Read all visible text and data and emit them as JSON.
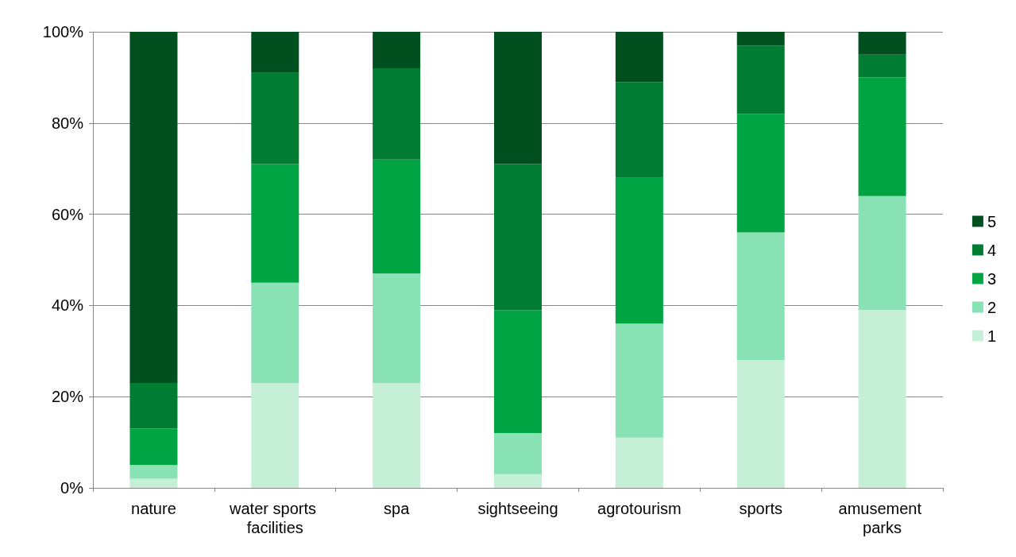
{
  "chart_data": {
    "type": "bar",
    "stacked": true,
    "categories": [
      "nature",
      "water sports facilities",
      "spa",
      "sightseeing",
      "agrotourism",
      "sports",
      "amusement parks"
    ],
    "series": [
      {
        "name": "1",
        "color": "#c6efd7",
        "values": [
          2,
          23,
          23,
          3,
          11,
          28,
          39
        ]
      },
      {
        "name": "2",
        "color": "#88e2b4",
        "values": [
          3,
          22,
          24,
          9,
          25,
          28,
          25
        ]
      },
      {
        "name": "3",
        "color": "#00a443",
        "values": [
          8,
          26,
          25,
          27,
          32,
          26,
          26
        ]
      },
      {
        "name": "4",
        "color": "#007d33",
        "values": [
          10,
          20,
          20,
          32,
          21,
          15,
          5
        ]
      },
      {
        "name": "5",
        "color": "#00501f",
        "values": [
          77,
          9,
          8,
          29,
          11,
          3,
          5
        ]
      }
    ],
    "ylim": [
      0,
      100
    ],
    "yticks": [
      {
        "value": 0,
        "label": "0%"
      },
      {
        "value": 20,
        "label": "20%"
      },
      {
        "value": 40,
        "label": "40%"
      },
      {
        "value": 60,
        "label": "60%"
      },
      {
        "value": 80,
        "label": "80%"
      },
      {
        "value": 100,
        "label": "100%"
      }
    ],
    "grid": "y",
    "legend": "right"
  }
}
